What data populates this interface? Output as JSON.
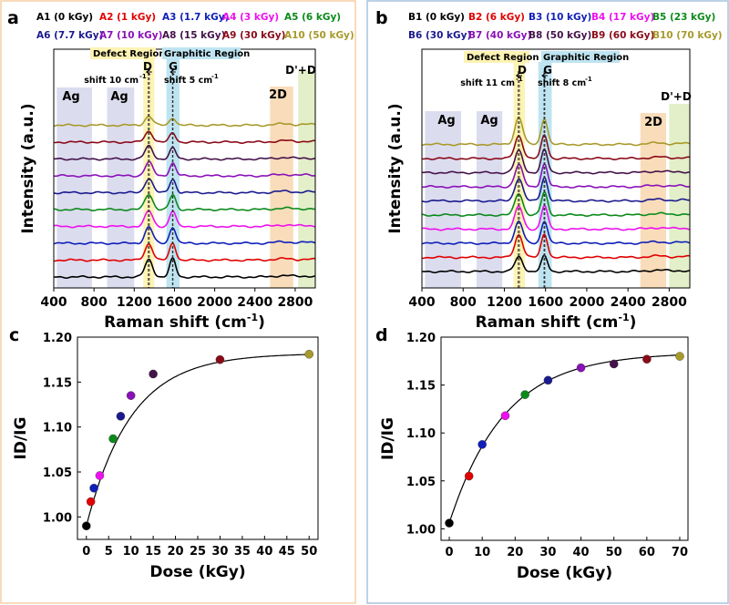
{
  "colors": {
    "frame_left": "#f5cfa6",
    "frame_right": "#a9c3dd",
    "ag_region": "#dcdcef",
    "defect_region": "#fdf3b3",
    "graphitic_region": "#bfe4f1",
    "twod_region": "#f9dcba",
    "dpd_region": "#e2efc9",
    "series": [
      "#000000",
      "#e00000",
      "#0f1fb8",
      "#ee10ee",
      "#0b8a1a",
      "#1a1a8f",
      "#8a10b8",
      "#44124a",
      "#8a0a18",
      "#a89a2a"
    ]
  },
  "panels": {
    "a": {
      "letter": "a",
      "legend": [
        "A1 (0 kGy)",
        "A2 (1 kGy)",
        "A3 (1.7 kGy)",
        "A4 (3 kGy)",
        "A5 (6 kGy)",
        "A6 (7.7 kGy)",
        "A7 (10 kGy)",
        "A8 (15 kGy)",
        "A9 (30 kGy)",
        "A10 (50 kGy)"
      ],
      "labels": {
        "defect_region": "Defect Region",
        "graphitic_region": "Graphitic Region",
        "d": "D",
        "g": "G",
        "shift_d": "shift 10 cm",
        "shift_g": "shift 5 cm",
        "exp": "-1",
        "ag1": "Ag",
        "ag2": "Ag",
        "twod": "2D",
        "dpd": "D'+D"
      }
    },
    "b": {
      "letter": "b",
      "legend": [
        "B1 (0 kGy)",
        "B2 (6 kGy)",
        "B3 (10 kGy)",
        "B4 (17 kGy)",
        "B5 (23 kGy)",
        "B6 (30 kGy)",
        "B7 (40 kGy)",
        "B8 (50 kGy)",
        "B9 (60 kGy)",
        "B10 (70 kGy)"
      ],
      "labels": {
        "defect_region": "Defect Region",
        "graphitic_region": "Graphitic Region",
        "d": "D",
        "g": "G",
        "shift_d": "shift 11 cm",
        "shift_g": "shift 8 cm",
        "exp": "-1",
        "ag1": "Ag",
        "ag2": "Ag",
        "twod": "2D",
        "dpd": "D'+D"
      }
    },
    "c": {
      "letter": "c"
    },
    "d": {
      "letter": "d"
    }
  },
  "chart_data": [
    {
      "id": "a",
      "type": "line",
      "xlabel": "Raman shift (cm",
      "xlabel_sup": "-1",
      "xlabel_end": ")",
      "ylabel": "Intensity (a.u.)",
      "xlim": [
        400,
        3000
      ],
      "xticks": [
        400,
        800,
        1200,
        1600,
        2000,
        2400,
        2800
      ],
      "regions_cm": {
        "ag1": [
          430,
          780
        ],
        "ag2": [
          930,
          1200
        ],
        "defect": [
          1290,
          1400
        ],
        "graphitic": [
          1520,
          1650
        ],
        "twod": [
          2550,
          2780
        ],
        "dpd": [
          2830,
          3000
        ]
      },
      "d_band": [
        1340,
        1350
      ],
      "g_band": [
        1580,
        1585
      ],
      "series_names": [
        "A1 (0 kGy)",
        "A2 (1 kGy)",
        "A3 (1.7 kGy)",
        "A4 (3 kGy)",
        "A5 (6 kGy)",
        "A6 (7.7 kGy)",
        "A7 (10 kGy)",
        "A8 (15 kGy)",
        "A9 (30 kGy)",
        "A10 (50 kGy)"
      ],
      "peak_heights": {
        "d": [
          0.95,
          0.9,
          0.9,
          0.85,
          0.85,
          0.8,
          0.75,
          0.7,
          0.6,
          0.5
        ],
        "g": [
          1.0,
          0.95,
          0.9,
          0.85,
          0.8,
          0.75,
          0.7,
          0.6,
          0.5,
          0.42
        ]
      }
    },
    {
      "id": "b",
      "type": "line",
      "xlabel": "Raman shift (cm",
      "xlabel_sup": "-1",
      "xlabel_end": ")",
      "ylabel": "Intensity (a.u.)",
      "xlim": [
        400,
        3000
      ],
      "xticks": [
        400,
        800,
        1200,
        1600,
        2000,
        2400,
        2800
      ],
      "regions_cm": {
        "ag1": [
          430,
          780
        ],
        "ag2": [
          930,
          1180
        ],
        "defect": [
          1290,
          1400
        ],
        "graphitic": [
          1530,
          1660
        ],
        "twod": [
          2520,
          2770
        ],
        "dpd": [
          2800,
          3000
        ]
      },
      "d_band": [
        1335,
        1346
      ],
      "g_band": [
        1585,
        1593
      ],
      "series_names": [
        "B1 (0 kGy)",
        "B2 (6 kGy)",
        "B3 (10 kGy)",
        "B4 (17 kGy)",
        "B5 (23 kGy)",
        "B6 (30 kGy)",
        "B7 (40 kGy)",
        "B8 (50 kGy)",
        "B9 (60 kGy)",
        "B10 (70 kGy)"
      ],
      "peak_heights": {
        "d": [
          0.8,
          1.25,
          1.2,
          1.25,
          1.2,
          1.25,
          1.2,
          1.2,
          1.25,
          1.5
        ],
        "g": [
          0.85,
          1.3,
          1.25,
          1.3,
          1.25,
          1.3,
          1.25,
          1.25,
          1.3,
          1.45
        ]
      }
    },
    {
      "id": "c",
      "type": "scatter",
      "xlabel": "Dose (kGy)",
      "ylabel": "ID/IG",
      "xlim": [
        -2,
        52
      ],
      "ylim": [
        0.975,
        1.2
      ],
      "xticks": [
        0,
        5,
        10,
        15,
        20,
        25,
        30,
        35,
        40,
        45,
        50
      ],
      "yticks": [
        1.0,
        1.05,
        1.1,
        1.15,
        1.2
      ],
      "x": [
        0,
        1,
        1.7,
        3,
        6,
        7.7,
        10,
        15,
        30,
        50
      ],
      "y": [
        0.99,
        1.017,
        1.032,
        1.046,
        1.087,
        1.112,
        1.135,
        1.159,
        1.175,
        1.181
      ],
      "fit": {
        "type": "exponential",
        "y0": 0.99,
        "a": 0.192,
        "k": 0.1
      }
    },
    {
      "id": "d",
      "type": "scatter",
      "xlabel": "Dose (kGy)",
      "ylabel": "ID/IG",
      "xlim": [
        -2.5,
        72.5
      ],
      "ylim": [
        0.988,
        1.2
      ],
      "xticks": [
        0,
        10,
        20,
        30,
        40,
        50,
        60,
        70
      ],
      "yticks": [
        1.0,
        1.05,
        1.1,
        1.15,
        1.2
      ],
      "x": [
        0,
        6,
        10,
        17,
        23,
        30,
        40,
        50,
        60,
        70
      ],
      "y": [
        1.006,
        1.055,
        1.088,
        1.118,
        1.14,
        1.155,
        1.168,
        1.172,
        1.177,
        1.18
      ],
      "fit": {
        "type": "exponential",
        "y0": 1.006,
        "a": 0.178,
        "k": 0.06
      }
    }
  ]
}
